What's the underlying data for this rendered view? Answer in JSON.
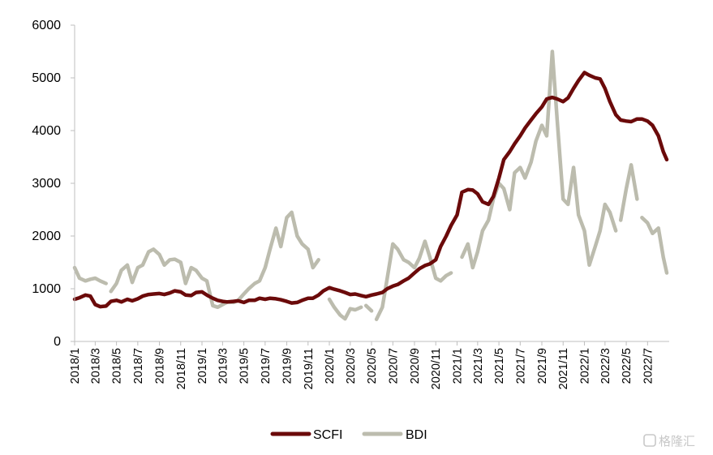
{
  "chart_data": {
    "type": "line",
    "title": "",
    "xlabel": "",
    "ylabel": "",
    "ylim": [
      0,
      6000
    ],
    "yticks": [
      0,
      1000,
      2000,
      3000,
      4000,
      5000,
      6000
    ],
    "xlim": [
      "2018-01-01",
      "2022-09-01"
    ],
    "xtick_labels": [
      "2018/1",
      "2018/3",
      "2018/5",
      "2018/7",
      "2018/9",
      "2018/11",
      "2019/1",
      "2019/3",
      "2019/5",
      "2019/7",
      "2019/9",
      "2019/11",
      "2020/1",
      "2020/3",
      "2020/5",
      "2020/7",
      "2020/9",
      "2020/11",
      "2021/1",
      "2021/3",
      "2021/5",
      "2021/7",
      "2021/9",
      "2021/11",
      "2022/1",
      "2022/3",
      "2022/5",
      "2022/7"
    ],
    "grid": false,
    "legend_position": "bottom",
    "series": [
      {
        "name": "SCFI",
        "color": "#6b0a0a",
        "points": [
          [
            "2018-01-01",
            800
          ],
          [
            "2018-01-15",
            830
          ],
          [
            "2018-02-01",
            880
          ],
          [
            "2018-02-15",
            860
          ],
          [
            "2018-03-01",
            700
          ],
          [
            "2018-03-15",
            660
          ],
          [
            "2018-04-01",
            670
          ],
          [
            "2018-04-15",
            760
          ],
          [
            "2018-05-01",
            780
          ],
          [
            "2018-05-15",
            750
          ],
          [
            "2018-06-01",
            800
          ],
          [
            "2018-06-15",
            770
          ],
          [
            "2018-07-01",
            810
          ],
          [
            "2018-07-15",
            860
          ],
          [
            "2018-08-01",
            890
          ],
          [
            "2018-08-15",
            900
          ],
          [
            "2018-09-01",
            910
          ],
          [
            "2018-09-15",
            890
          ],
          [
            "2018-10-01",
            920
          ],
          [
            "2018-10-15",
            960
          ],
          [
            "2018-11-01",
            940
          ],
          [
            "2018-11-15",
            880
          ],
          [
            "2018-12-01",
            870
          ],
          [
            "2018-12-15",
            930
          ],
          [
            "2019-01-01",
            940
          ],
          [
            "2019-01-15",
            880
          ],
          [
            "2019-02-01",
            820
          ],
          [
            "2019-02-15",
            780
          ],
          [
            "2019-03-01",
            760
          ],
          [
            "2019-03-15",
            750
          ],
          [
            "2019-04-01",
            760
          ],
          [
            "2019-04-15",
            770
          ],
          [
            "2019-05-01",
            740
          ],
          [
            "2019-05-15",
            780
          ],
          [
            "2019-06-01",
            780
          ],
          [
            "2019-06-15",
            820
          ],
          [
            "2019-07-01",
            800
          ],
          [
            "2019-07-15",
            820
          ],
          [
            "2019-08-01",
            810
          ],
          [
            "2019-08-15",
            790
          ],
          [
            "2019-09-01",
            760
          ],
          [
            "2019-09-15",
            730
          ],
          [
            "2019-10-01",
            740
          ],
          [
            "2019-10-15",
            780
          ],
          [
            "2019-11-01",
            820
          ],
          [
            "2019-11-15",
            820
          ],
          [
            "2019-12-01",
            880
          ],
          [
            "2019-12-15",
            960
          ],
          [
            "2020-01-01",
            1020
          ],
          [
            "2020-01-15",
            990
          ],
          [
            "2020-02-01",
            960
          ],
          [
            "2020-02-15",
            930
          ],
          [
            "2020-03-01",
            890
          ],
          [
            "2020-03-15",
            900
          ],
          [
            "2020-04-01",
            870
          ],
          [
            "2020-04-15",
            850
          ],
          [
            "2020-05-01",
            880
          ],
          [
            "2020-05-15",
            900
          ],
          [
            "2020-06-01",
            930
          ],
          [
            "2020-06-15",
            1000
          ],
          [
            "2020-07-01",
            1050
          ],
          [
            "2020-07-15",
            1080
          ],
          [
            "2020-08-01",
            1150
          ],
          [
            "2020-08-15",
            1200
          ],
          [
            "2020-09-01",
            1300
          ],
          [
            "2020-09-15",
            1380
          ],
          [
            "2020-10-01",
            1440
          ],
          [
            "2020-10-15",
            1470
          ],
          [
            "2020-11-01",
            1550
          ],
          [
            "2020-11-15",
            1800
          ],
          [
            "2020-12-01",
            2000
          ],
          [
            "2020-12-15",
            2200
          ],
          [
            "2021-01-01",
            2400
          ],
          [
            "2021-01-15",
            2830
          ],
          [
            "2021-02-01",
            2880
          ],
          [
            "2021-02-15",
            2870
          ],
          [
            "2021-03-01",
            2800
          ],
          [
            "2021-03-15",
            2650
          ],
          [
            "2021-04-01",
            2600
          ],
          [
            "2021-04-15",
            2750
          ],
          [
            "2021-05-01",
            3100
          ],
          [
            "2021-05-15",
            3450
          ],
          [
            "2021-06-01",
            3600
          ],
          [
            "2021-06-15",
            3750
          ],
          [
            "2021-07-01",
            3900
          ],
          [
            "2021-07-15",
            4050
          ],
          [
            "2021-08-01",
            4200
          ],
          [
            "2021-08-15",
            4320
          ],
          [
            "2021-09-01",
            4450
          ],
          [
            "2021-09-15",
            4600
          ],
          [
            "2021-10-01",
            4630
          ],
          [
            "2021-10-15",
            4600
          ],
          [
            "2021-11-01",
            4550
          ],
          [
            "2021-11-15",
            4620
          ],
          [
            "2021-12-01",
            4800
          ],
          [
            "2021-12-15",
            4950
          ],
          [
            "2022-01-01",
            5100
          ],
          [
            "2022-01-15",
            5050
          ],
          [
            "2022-02-01",
            5000
          ],
          [
            "2022-02-15",
            4980
          ],
          [
            "2022-03-01",
            4800
          ],
          [
            "2022-03-15",
            4550
          ],
          [
            "2022-04-01",
            4300
          ],
          [
            "2022-04-15",
            4200
          ],
          [
            "2022-05-01",
            4180
          ],
          [
            "2022-05-15",
            4170
          ],
          [
            "2022-06-01",
            4220
          ],
          [
            "2022-06-15",
            4220
          ],
          [
            "2022-07-01",
            4180
          ],
          [
            "2022-07-15",
            4100
          ],
          [
            "2022-08-01",
            3900
          ],
          [
            "2022-08-15",
            3600
          ],
          [
            "2022-08-25",
            3450
          ]
        ]
      },
      {
        "name": "BDI",
        "color": "#bcbcae",
        "segments": [
          [
            [
              "2018-01-01",
              1400
            ],
            [
              "2018-01-15",
              1200
            ],
            [
              "2018-02-01",
              1150
            ],
            [
              "2018-02-15",
              1180
            ],
            [
              "2018-03-01",
              1200
            ],
            [
              "2018-03-15",
              1150
            ],
            [
              "2018-04-01",
              1100
            ]
          ],
          [
            [
              "2018-04-15",
              950
            ],
            [
              "2018-05-01",
              1100
            ],
            [
              "2018-05-15",
              1350
            ],
            [
              "2018-06-01",
              1450
            ],
            [
              "2018-06-15",
              1120
            ],
            [
              "2018-07-01",
              1400
            ],
            [
              "2018-07-15",
              1450
            ],
            [
              "2018-08-01",
              1700
            ],
            [
              "2018-08-15",
              1750
            ],
            [
              "2018-09-01",
              1650
            ],
            [
              "2018-09-15",
              1450
            ],
            [
              "2018-10-01",
              1550
            ],
            [
              "2018-10-15",
              1560
            ],
            [
              "2018-11-01",
              1500
            ],
            [
              "2018-11-15",
              1100
            ],
            [
              "2018-12-01",
              1400
            ],
            [
              "2018-12-15",
              1350
            ],
            [
              "2019-01-01",
              1200
            ],
            [
              "2019-01-15",
              1150
            ],
            [
              "2019-02-01",
              680
            ],
            [
              "2019-02-15",
              650
            ],
            [
              "2019-03-01",
              700
            ],
            [
              "2019-03-15",
              750
            ],
            [
              "2019-04-01",
              740
            ],
            [
              "2019-04-15",
              780
            ],
            [
              "2019-05-01",
              900
            ],
            [
              "2019-05-15",
              1000
            ],
            [
              "2019-06-01",
              1100
            ],
            [
              "2019-06-15",
              1150
            ],
            [
              "2019-07-01",
              1400
            ],
            [
              "2019-07-15",
              1750
            ],
            [
              "2019-08-01",
              2150
            ],
            [
              "2019-08-15",
              1800
            ],
            [
              "2019-09-01",
              2350
            ],
            [
              "2019-09-15",
              2450
            ],
            [
              "2019-10-01",
              2000
            ],
            [
              "2019-10-15",
              1850
            ],
            [
              "2019-11-01",
              1750
            ],
            [
              "2019-11-15",
              1400
            ],
            [
              "2019-12-01",
              1550
            ]
          ],
          [
            [
              "2020-01-01",
              800
            ],
            [
              "2020-01-15",
              650
            ],
            [
              "2020-02-01",
              500
            ],
            [
              "2020-02-15",
              430
            ],
            [
              "2020-03-01",
              620
            ],
            [
              "2020-03-15",
              600
            ],
            [
              "2020-04-01",
              650
            ]
          ],
          [
            [
              "2020-04-15",
              680
            ],
            [
              "2020-05-01",
              580
            ]
          ],
          [
            [
              "2020-05-15",
              420
            ],
            [
              "2020-06-01",
              650
            ],
            [
              "2020-06-15",
              1200
            ],
            [
              "2020-07-01",
              1850
            ],
            [
              "2020-07-15",
              1750
            ],
            [
              "2020-08-01",
              1550
            ],
            [
              "2020-08-15",
              1500
            ],
            [
              "2020-09-01",
              1400
            ],
            [
              "2020-09-15",
              1580
            ],
            [
              "2020-10-01",
              1900
            ],
            [
              "2020-10-15",
              1600
            ],
            [
              "2020-11-01",
              1200
            ],
            [
              "2020-11-15",
              1150
            ],
            [
              "2020-12-01",
              1250
            ],
            [
              "2020-12-15",
              1300
            ]
          ],
          [
            [
              "2021-01-15",
              1600
            ],
            [
              "2021-02-01",
              1850
            ],
            [
              "2021-02-15",
              1400
            ],
            [
              "2021-03-01",
              1700
            ],
            [
              "2021-03-15",
              2100
            ],
            [
              "2021-04-01",
              2300
            ],
            [
              "2021-04-15",
              2700
            ],
            [
              "2021-05-01",
              3000
            ],
            [
              "2021-05-15",
              2900
            ],
            [
              "2021-06-01",
              2500
            ],
            [
              "2021-06-15",
              3200
            ],
            [
              "2021-07-01",
              3300
            ],
            [
              "2021-07-15",
              3100
            ],
            [
              "2021-08-01",
              3400
            ],
            [
              "2021-08-15",
              3800
            ],
            [
              "2021-09-01",
              4100
            ],
            [
              "2021-09-15",
              3900
            ],
            [
              "2021-10-01",
              5500
            ],
            [
              "2021-10-15",
              4200
            ],
            [
              "2021-11-01",
              2700
            ],
            [
              "2021-11-15",
              2600
            ],
            [
              "2021-12-01",
              3300
            ],
            [
              "2021-12-15",
              2400
            ],
            [
              "2022-01-01",
              2100
            ],
            [
              "2022-01-15",
              1450
            ],
            [
              "2022-02-01",
              1800
            ],
            [
              "2022-02-15",
              2100
            ],
            [
              "2022-03-01",
              2600
            ],
            [
              "2022-03-15",
              2450
            ],
            [
              "2022-04-01",
              2100
            ]
          ],
          [
            [
              "2022-04-15",
              2300
            ],
            [
              "2022-05-01",
              2900
            ],
            [
              "2022-05-15",
              3350
            ],
            [
              "2022-06-01",
              2700
            ]
          ],
          [
            [
              "2022-06-15",
              2350
            ],
            [
              "2022-07-01",
              2250
            ],
            [
              "2022-07-15",
              2050
            ],
            [
              "2022-08-01",
              2150
            ],
            [
              "2022-08-15",
              1600
            ],
            [
              "2022-08-25",
              1300
            ]
          ]
        ]
      }
    ]
  },
  "watermark": {
    "text": "格隆汇"
  }
}
